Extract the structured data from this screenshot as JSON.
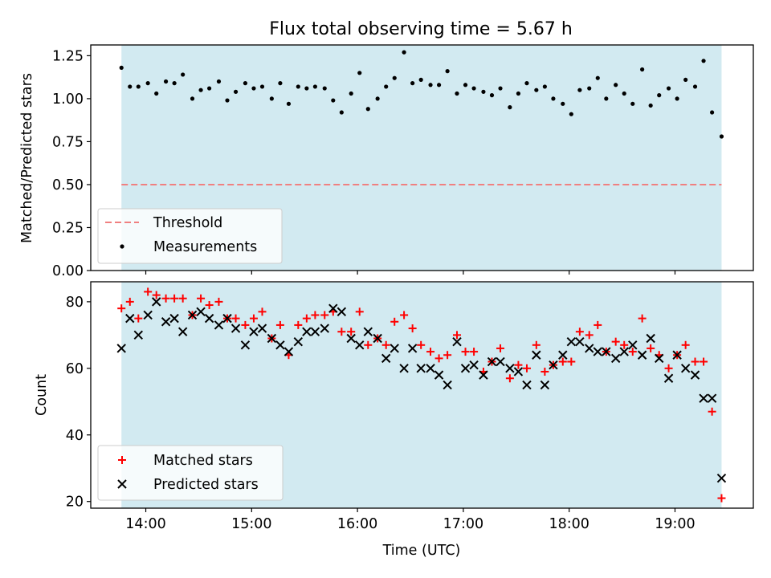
{
  "chart_data": [
    {
      "type": "scatter",
      "title": "Flux total observing time = 5.67 h",
      "xlabel": "",
      "ylabel": "Matched/Predicted stars",
      "xlim": [
        13.48,
        19.74
      ],
      "ylim": [
        0,
        1.3125
      ],
      "yticks": [
        0.0,
        0.25,
        0.5,
        0.75,
        1.0,
        1.25
      ],
      "ytick_labels": [
        "0.00",
        "0.25",
        "0.50",
        "0.75",
        "1.00",
        "1.25"
      ],
      "xticks": [
        14,
        15,
        16,
        17,
        18,
        19
      ],
      "grid": false,
      "legend": "lower-left",
      "shaded_span": [
        13.77,
        19.44
      ],
      "shade_color": "#add8e6",
      "threshold": {
        "name": "Threshold",
        "value": 0.5,
        "color": "#f08080"
      },
      "series": [
        {
          "name": "Measurements",
          "color": "#000000",
          "x": [
            13.77,
            13.85,
            13.93,
            14.02,
            14.1,
            14.19,
            14.27,
            14.35,
            14.44,
            14.52,
            14.6,
            14.69,
            14.77,
            14.85,
            14.94,
            15.02,
            15.1,
            15.19,
            15.27,
            15.35,
            15.44,
            15.52,
            15.6,
            15.69,
            15.77,
            15.85,
            15.94,
            16.02,
            16.1,
            16.19,
            16.27,
            16.35,
            16.44,
            16.52,
            16.6,
            16.69,
            16.77,
            16.85,
            16.94,
            17.02,
            17.1,
            17.19,
            17.27,
            17.35,
            17.44,
            17.52,
            17.6,
            17.69,
            17.77,
            17.85,
            17.94,
            18.02,
            18.1,
            18.19,
            18.27,
            18.35,
            18.44,
            18.52,
            18.6,
            18.69,
            18.77,
            18.85,
            18.94,
            19.02,
            19.1,
            19.19,
            19.27,
            19.35,
            19.44
          ],
          "y": [
            1.18,
            1.07,
            1.07,
            1.09,
            1.03,
            1.1,
            1.09,
            1.14,
            1.0,
            1.05,
            1.06,
            1.1,
            0.99,
            1.04,
            1.09,
            1.06,
            1.07,
            1.0,
            1.09,
            0.97,
            1.07,
            1.06,
            1.07,
            1.06,
            0.99,
            0.92,
            1.03,
            1.15,
            0.94,
            1.0,
            1.07,
            1.12,
            1.27,
            1.09,
            1.11,
            1.08,
            1.08,
            1.16,
            1.03,
            1.08,
            1.06,
            1.04,
            1.02,
            1.06,
            0.95,
            1.03,
            1.09,
            1.05,
            1.07,
            1.0,
            0.97,
            0.91,
            1.05,
            1.06,
            1.12,
            1.0,
            1.08,
            1.03,
            0.97,
            1.17,
            0.96,
            1.02,
            1.06,
            1.0,
            1.11,
            1.07,
            1.22,
            0.92,
            0.78
          ]
        }
      ]
    },
    {
      "type": "scatter",
      "title": "",
      "xlabel": "Time (UTC)",
      "ylabel": "Count",
      "xlim": [
        13.48,
        19.74
      ],
      "ylim": [
        18,
        86
      ],
      "yticks": [
        20,
        40,
        60,
        80
      ],
      "ytick_labels": [
        "20",
        "40",
        "60",
        "80"
      ],
      "xticks": [
        14,
        15,
        16,
        17,
        18,
        19
      ],
      "xtick_labels": [
        "14:00",
        "15:00",
        "16:00",
        "17:00",
        "18:00",
        "19:00"
      ],
      "grid": false,
      "legend": "lower-left",
      "shaded_span": [
        13.77,
        19.44
      ],
      "shade_color": "#add8e6",
      "series": [
        {
          "name": "Matched stars",
          "marker": "plus",
          "color": "#ff0000",
          "x": [
            13.77,
            13.85,
            13.93,
            14.02,
            14.1,
            14.19,
            14.27,
            14.35,
            14.44,
            14.52,
            14.6,
            14.69,
            14.77,
            14.85,
            14.94,
            15.02,
            15.1,
            15.19,
            15.27,
            15.35,
            15.44,
            15.52,
            15.6,
            15.69,
            15.77,
            15.85,
            15.94,
            16.02,
            16.1,
            16.19,
            16.27,
            16.35,
            16.44,
            16.52,
            16.6,
            16.69,
            16.77,
            16.85,
            16.94,
            17.02,
            17.1,
            17.19,
            17.27,
            17.35,
            17.44,
            17.52,
            17.6,
            17.69,
            17.77,
            17.85,
            17.94,
            18.02,
            18.1,
            18.19,
            18.27,
            18.35,
            18.44,
            18.52,
            18.6,
            18.69,
            18.77,
            18.85,
            18.94,
            19.02,
            19.1,
            19.19,
            19.27,
            19.35,
            19.44
          ],
          "y": [
            78,
            80,
            75,
            83,
            82,
            81,
            81,
            81,
            76,
            81,
            79,
            80,
            75,
            75,
            73,
            75,
            77,
            69,
            73,
            64,
            73,
            75,
            76,
            76,
            77,
            71,
            71,
            77,
            67,
            69,
            67,
            74,
            76,
            72,
            67,
            65,
            63,
            64,
            70,
            65,
            65,
            59,
            62,
            66,
            57,
            61,
            60,
            67,
            59,
            61,
            62,
            62,
            71,
            70,
            73,
            65,
            68,
            67,
            65,
            75,
            66,
            64,
            60,
            64,
            67,
            62,
            62,
            47,
            21
          ]
        },
        {
          "name": "Predicted stars",
          "marker": "x",
          "color": "#000000",
          "x": [
            13.77,
            13.85,
            13.93,
            14.02,
            14.1,
            14.19,
            14.27,
            14.35,
            14.44,
            14.52,
            14.6,
            14.69,
            14.77,
            14.85,
            14.94,
            15.02,
            15.1,
            15.19,
            15.27,
            15.35,
            15.44,
            15.52,
            15.6,
            15.69,
            15.77,
            15.85,
            15.94,
            16.02,
            16.1,
            16.19,
            16.27,
            16.35,
            16.44,
            16.52,
            16.6,
            16.69,
            16.77,
            16.85,
            16.94,
            17.02,
            17.1,
            17.19,
            17.27,
            17.35,
            17.44,
            17.52,
            17.6,
            17.69,
            17.77,
            17.85,
            17.94,
            18.02,
            18.1,
            18.19,
            18.27,
            18.35,
            18.44,
            18.52,
            18.6,
            18.69,
            18.77,
            18.85,
            18.94,
            19.02,
            19.1,
            19.19,
            19.27,
            19.35,
            19.44
          ],
          "y": [
            66,
            75,
            70,
            76,
            80,
            74,
            75,
            71,
            76,
            77,
            75,
            73,
            75,
            72,
            67,
            71,
            72,
            69,
            67,
            65,
            68,
            71,
            71,
            72,
            78,
            77,
            69,
            67,
            71,
            69,
            63,
            66,
            60,
            66,
            60,
            60,
            58,
            55,
            68,
            60,
            61,
            58,
            62,
            62,
            60,
            59,
            55,
            64,
            55,
            61,
            64,
            68,
            68,
            66,
            65,
            65,
            63,
            65,
            67,
            64,
            69,
            63,
            57,
            64,
            60,
            58,
            51,
            51,
            27
          ]
        }
      ]
    }
  ]
}
